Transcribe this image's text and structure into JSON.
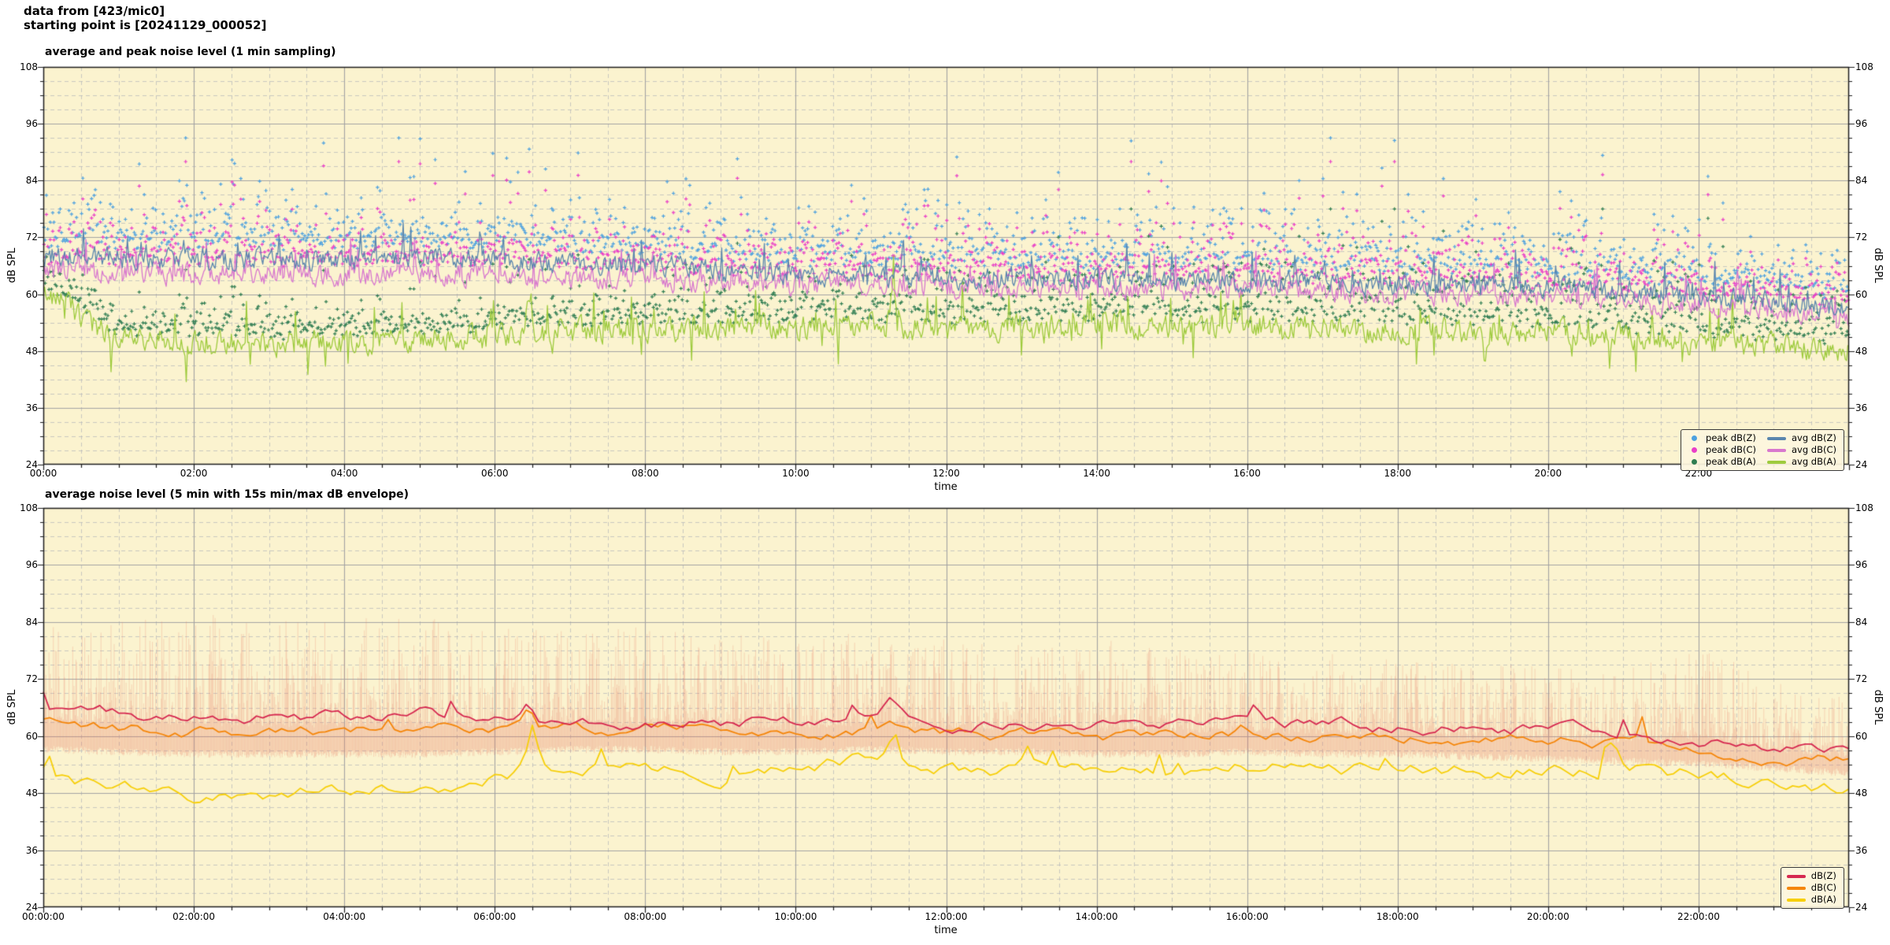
{
  "header": {
    "line1": "data from [423/mic0]",
    "line2": "starting point is [20241129_000052]"
  },
  "style": {
    "plot_bg": "#fbf3cf",
    "grid_major": "#a3a3a3",
    "grid_minor": "#bcbcbc",
    "border": "#1c1c1c"
  },
  "chart_data": [
    {
      "type": "line",
      "title": "average and peak noise level (1 min sampling)",
      "xlabel": "time",
      "ylabel_left": "dB SPL",
      "ylabel_right": "dB SPL",
      "x_range_hours": [
        0,
        24
      ],
      "ylim": [
        24,
        108
      ],
      "y_ticks": [
        108,
        96,
        84,
        72,
        60,
        48,
        36,
        24
      ],
      "y_minor_step_db": 3,
      "x_tick_labels": [
        "00:00",
        "02:00",
        "04:00",
        "06:00",
        "08:00",
        "10:00",
        "12:00",
        "14:00",
        "16:00",
        "18:00",
        "20:00",
        "22:00"
      ],
      "x_major_step_hours": 2,
      "x_minor_step_hours": 0.5,
      "grid": true,
      "sampling_minutes": 1,
      "seed": 1337,
      "series": [
        {
          "name": "avg dB(Z)",
          "style": "line",
          "color": "#5a86ae",
          "width": 1.3,
          "anchors_hourly": [
            68,
            67.5,
            67,
            67.5,
            67,
            68,
            67,
            66.5,
            66,
            65,
            64,
            64,
            63.5,
            63.5,
            63,
            63,
            63,
            62.5,
            62,
            62,
            61.5,
            60.5,
            59.5,
            58.5,
            56.5
          ],
          "jitter_db": 1.9,
          "smooth": 0.45,
          "spike_prob": 0.045,
          "spike_db": 5,
          "events": []
        },
        {
          "name": "avg dB(C)",
          "style": "line",
          "color": "#d878ce",
          "width": 1.3,
          "anchors_hourly": [
            65,
            64.5,
            64,
            64.5,
            64,
            64.5,
            64,
            63.5,
            63,
            62.5,
            62,
            62,
            61.5,
            61.5,
            61,
            61,
            61,
            60.5,
            60,
            60,
            59.5,
            58.5,
            57.5,
            56.5,
            55
          ],
          "jitter_db": 1.9,
          "smooth": 0.45,
          "spike_prob": 0.05,
          "spike_db": 5,
          "events": []
        },
        {
          "name": "avg dB(A)",
          "style": "line",
          "color": "#9ecb3d",
          "width": 1.3,
          "anchors_hourly": [
            61,
            50,
            50,
            49.5,
            50,
            50.5,
            51,
            52,
            52.5,
            53,
            53,
            53.5,
            52.5,
            53,
            53.5,
            53,
            53.5,
            53,
            52.5,
            52,
            52,
            51,
            50,
            49,
            48
          ],
          "jitter_db": 2.2,
          "smooth": 0.45,
          "spike_prob": 0.06,
          "spike_db": 7,
          "spikes_symmetric": true,
          "events": [
            {
              "h": 6.45,
              "db_add": 8,
              "w": 0.06
            },
            {
              "h": 11.3,
              "db_add": 7,
              "w": 0.06
            }
          ]
        },
        {
          "name": "peak dB(Z)",
          "style": "scatter",
          "marker": "plus",
          "color": "#4da1e0",
          "base": "avg dB(Z)",
          "offset_db": 3,
          "spread_db": 8,
          "spread_growth_db": 0,
          "max_db": 93
        },
        {
          "name": "peak dB(C)",
          "style": "scatter",
          "marker": "plus",
          "color": "#ea3ec8",
          "base": "avg dB(C)",
          "offset_db": 2.5,
          "spread_db": 7.5,
          "spread_growth_db": 0,
          "max_db": 88
        },
        {
          "name": "peak dB(A)",
          "style": "scatter",
          "marker": "plus",
          "color": "#2f7d52",
          "base": "avg dB(A)",
          "offset_db": 2,
          "spread_db": 4,
          "spread_growth_db": 5,
          "max_db": 78
        }
      ],
      "draw_order": [
        "peak dB(Z)",
        "peak dB(C)",
        "peak dB(A)",
        "avg dB(A)",
        "avg dB(C)",
        "avg dB(Z)"
      ],
      "legend": {
        "position": "lower right",
        "columns": [
          [
            {
              "label": "peak dB(Z)",
              "swatch": "dot",
              "color": "#4da1e0"
            },
            {
              "label": "peak dB(C)",
              "swatch": "dot",
              "color": "#ea3ec8"
            },
            {
              "label": "peak dB(A)",
              "swatch": "dot",
              "color": "#2f7d52"
            }
          ],
          [
            {
              "label": "avg dB(Z)",
              "swatch": "line",
              "color": "#5a86ae"
            },
            {
              "label": "avg dB(C)",
              "swatch": "line",
              "color": "#d878ce"
            },
            {
              "label": "avg dB(A)",
              "swatch": "line",
              "color": "#9ecb3d"
            }
          ]
        ]
      }
    },
    {
      "type": "line",
      "title": "average noise level (5 min with 15s min/max dB envelope)",
      "xlabel": "time",
      "ylabel_left": "dB SPL",
      "ylabel_right": "dB SPL",
      "x_range_hours": [
        0,
        24
      ],
      "ylim": [
        24,
        108
      ],
      "y_ticks": [
        108,
        96,
        84,
        72,
        60,
        48,
        36,
        24
      ],
      "y_minor_step_db": 3,
      "x_tick_labels": [
        "00:00:00",
        "02:00:00",
        "04:00:00",
        "06:00:00",
        "08:00:00",
        "10:00:00",
        "12:00:00",
        "14:00:00",
        "16:00:00",
        "18:00:00",
        "20:00:00",
        "22:00:00"
      ],
      "x_major_step_hours": 2,
      "x_minor_step_hours": 0.5,
      "grid": true,
      "sampling_minutes": 5,
      "seed": 4242,
      "series": [
        {
          "name": "15s min/max envelope",
          "style": "band",
          "color": "rgba(231,128,108,0.27)",
          "max_anchors_hourly": [
            84,
            85,
            86,
            85,
            84,
            85,
            83,
            82,
            83,
            82,
            80,
            82,
            80,
            79,
            80,
            78,
            78,
            77,
            76,
            75,
            75,
            74,
            79,
            72,
            68
          ],
          "min_anchors_hourly": [
            58,
            57.5,
            57,
            57,
            57,
            57,
            57.5,
            58,
            58,
            57.5,
            57.5,
            58,
            57.5,
            57.5,
            57,
            57,
            57.5,
            57,
            57,
            56.5,
            56,
            55.5,
            55,
            54,
            53
          ]
        },
        {
          "name": "dB(Z)",
          "style": "line",
          "color": "#d62850",
          "width": 1.8,
          "anchors_hourly": [
            66,
            64.5,
            64,
            64.5,
            64,
            64.5,
            64,
            64,
            63.5,
            63,
            63.5,
            64,
            63,
            63,
            62.5,
            62.5,
            63,
            62.5,
            62,
            62,
            61.5,
            60.5,
            59.5,
            58,
            56.5
          ],
          "jitter_db": 0.95,
          "smooth": 0.8,
          "spike_prob": 0.02,
          "spike_db": 2.5,
          "events": [
            {
              "h": 6.45,
              "db_add": 3,
              "w": 0.1
            },
            {
              "h": 11.25,
              "db_add": 3,
              "w": 0.09
            },
            {
              "h": 16.1,
              "db_add": 2.5,
              "w": 0.09
            }
          ]
        },
        {
          "name": "dB(C)",
          "style": "line",
          "color": "#f5860a",
          "width": 1.8,
          "anchors_hourly": [
            63,
            61.5,
            61,
            61.5,
            61,
            61.5,
            61.5,
            62,
            61.5,
            61,
            61,
            61.5,
            60.5,
            60.5,
            60,
            60,
            60.5,
            60,
            60,
            59.5,
            59,
            58.5,
            57.5,
            56,
            54.8
          ],
          "jitter_db": 0.9,
          "smooth": 0.8,
          "spike_prob": 0.02,
          "spike_db": 2.5,
          "events": [
            {
              "h": 6.45,
              "db_add": 4,
              "w": 0.09
            },
            {
              "h": 11.25,
              "db_add": 2.5,
              "w": 0.09
            }
          ]
        },
        {
          "name": "dB(A)",
          "style": "line",
          "color": "#f7cf0a",
          "width": 1.8,
          "anchors_hourly": [
            52.5,
            48.5,
            47.5,
            47,
            48,
            48.5,
            51,
            53,
            53.5,
            53,
            53.5,
            54.5,
            53,
            53.5,
            53.5,
            53,
            54,
            53.5,
            53.5,
            53,
            53.5,
            52.5,
            51.5,
            50.5,
            48.5
          ],
          "jitter_db": 1.15,
          "smooth": 0.8,
          "spike_prob": 0.03,
          "spike_db": 3,
          "events": [
            {
              "h": 6.5,
              "db_add": 9,
              "w": 0.1
            },
            {
              "h": 11.3,
              "db_add": 5,
              "w": 0.08
            },
            {
              "h": 13.1,
              "db_add": 4,
              "w": 0.07
            },
            {
              "h": 20.85,
              "db_add": 6,
              "w": 0.1
            }
          ]
        }
      ],
      "draw_order": [
        "15s min/max envelope",
        "dB(A)",
        "dB(C)",
        "dB(Z)"
      ],
      "legend": {
        "position": "lower right",
        "columns": [
          [
            {
              "label": "dB(Z)",
              "swatch": "line",
              "color": "#d62850"
            },
            {
              "label": "dB(C)",
              "swatch": "line",
              "color": "#f5860a"
            },
            {
              "label": "dB(A)",
              "swatch": "line",
              "color": "#f7cf0a"
            }
          ]
        ]
      }
    }
  ]
}
